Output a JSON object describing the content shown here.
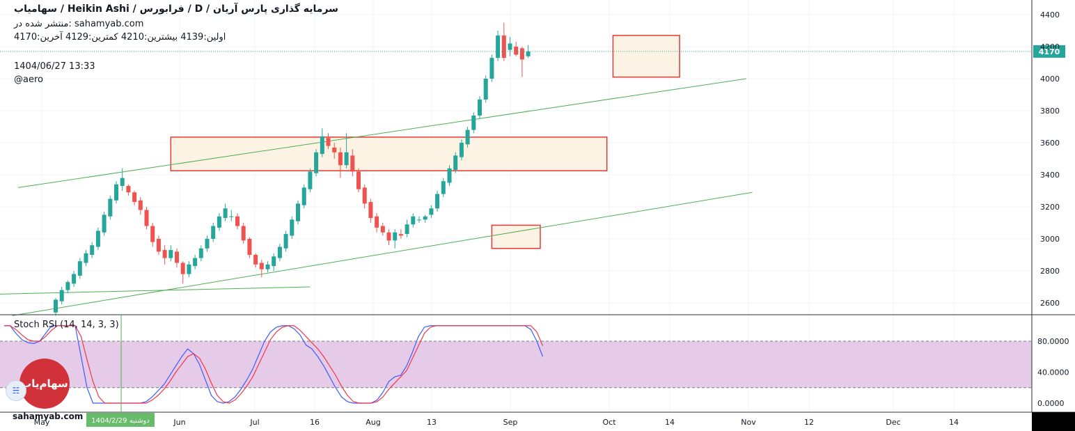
{
  "header": {
    "title": "سرمایه گذاری پارس آریان / D / فرابورس / Heikin Ashi / سهامیاب",
    "published": "منتشر شده در: sahamyab.com",
    "ohlc": "اولین:4139  بیشترین:4210  کمترین:4129  آخرین:4170",
    "datetime": "1404/06/27 13:33",
    "author": "@aero"
  },
  "indicator_label": "Stoch RSI (14, 14, 3, 3)",
  "branding": {
    "logo_text": "سهام‌یاب",
    "watermark": "sahamyab.com",
    "small_icon": "chart-bubble-icon"
  },
  "colors": {
    "up": "#26a69a",
    "down": "#ef5350",
    "trend": "#4caf50",
    "zone": "#e53935",
    "zone_fill": "#fdf3e4",
    "rsi_band": "#e6cbe8",
    "k_line": "#3d5afe",
    "d_line": "#f23645",
    "last_price_bg": "#26a69a"
  },
  "chart_data": [
    {
      "type": "candlestick",
      "style": "Heikin Ashi",
      "timeframe": "D",
      "y_ticks": [
        2600,
        2800,
        3000,
        3200,
        3400,
        3600,
        3800,
        4000,
        4200,
        4400
      ],
      "ylim": [
        2530,
        4460
      ],
      "last_price": 4170,
      "last_price_label": "4170",
      "x_labels": [
        "May",
        "Jun",
        "Jul",
        "16",
        "Aug",
        "13",
        "Sep",
        "Oct",
        "14",
        "Nov",
        "12",
        "Dec",
        "14"
      ],
      "highlighted_date": "1404/2/29 دوشنبه",
      "candles": [
        [
          2540,
          2620,
          2520,
          2630
        ],
        [
          2610,
          2680,
          2590,
          2700
        ],
        [
          2680,
          2730,
          2660,
          2740
        ],
        [
          2720,
          2780,
          2700,
          2800
        ],
        [
          2770,
          2860,
          2750,
          2880
        ],
        [
          2850,
          2910,
          2830,
          2930
        ],
        [
          2900,
          2960,
          2880,
          2980
        ],
        [
          2950,
          3050,
          2930,
          3070
        ],
        [
          3040,
          3150,
          3020,
          3170
        ],
        [
          3140,
          3250,
          3120,
          3270
        ],
        [
          3240,
          3340,
          3220,
          3360
        ],
        [
          3330,
          3380,
          3300,
          3440
        ],
        [
          3330,
          3290,
          3270,
          3340
        ],
        [
          3290,
          3230,
          3210,
          3300
        ],
        [
          3240,
          3180,
          3150,
          3260
        ],
        [
          3180,
          3080,
          3060,
          3200
        ],
        [
          3080,
          2980,
          2950,
          3100
        ],
        [
          3000,
          2920,
          2900,
          3020
        ],
        [
          2930,
          2880,
          2840,
          2960
        ],
        [
          2880,
          2930,
          2860,
          2960
        ],
        [
          2920,
          2850,
          2820,
          2940
        ],
        [
          2850,
          2780,
          2720,
          2860
        ],
        [
          2780,
          2840,
          2760,
          2860
        ],
        [
          2830,
          2880,
          2810,
          2900
        ],
        [
          2880,
          2940,
          2860,
          2960
        ],
        [
          2940,
          3000,
          2920,
          3020
        ],
        [
          3000,
          3080,
          2980,
          3100
        ],
        [
          3070,
          3140,
          3050,
          3160
        ],
        [
          3130,
          3190,
          3110,
          3220
        ],
        [
          3140,
          3140,
          3110,
          3180
        ],
        [
          3140,
          3080,
          3060,
          3160
        ],
        [
          3080,
          2990,
          2970,
          3100
        ],
        [
          3000,
          2900,
          2880,
          3010
        ],
        [
          2900,
          2840,
          2820,
          2910
        ],
        [
          2850,
          2810,
          2760,
          2870
        ],
        [
          2810,
          2840,
          2790,
          2860
        ],
        [
          2830,
          2890,
          2800,
          2910
        ],
        [
          2880,
          2950,
          2860,
          2970
        ],
        [
          2940,
          3030,
          2920,
          3050
        ],
        [
          3020,
          3120,
          3000,
          3140
        ],
        [
          3110,
          3220,
          3090,
          3240
        ],
        [
          3210,
          3320,
          3190,
          3340
        ],
        [
          3310,
          3420,
          3290,
          3440
        ],
        [
          3410,
          3540,
          3390,
          3560
        ],
        [
          3530,
          3640,
          3510,
          3690
        ],
        [
          3630,
          3580,
          3560,
          3660
        ],
        [
          3570,
          3540,
          3500,
          3600
        ],
        [
          3540,
          3460,
          3380,
          3570
        ],
        [
          3460,
          3540,
          3440,
          3660
        ],
        [
          3520,
          3420,
          3390,
          3560
        ],
        [
          3420,
          3310,
          3290,
          3440
        ],
        [
          3320,
          3220,
          3190,
          3340
        ],
        [
          3230,
          3130,
          3100,
          3250
        ],
        [
          3140,
          3070,
          3040,
          3160
        ],
        [
          3080,
          3040,
          3020,
          3100
        ],
        [
          3040,
          2990,
          2960,
          3060
        ],
        [
          2990,
          3040,
          2940,
          3060
        ],
        [
          3030,
          3020,
          3000,
          3060
        ],
        [
          3030,
          3090,
          3010,
          3120
        ],
        [
          3090,
          3140,
          3070,
          3160
        ],
        [
          3120,
          3120,
          3100,
          3140
        ],
        [
          3120,
          3140,
          3100,
          3150
        ],
        [
          3150,
          3190,
          3130,
          3210
        ],
        [
          3190,
          3280,
          3170,
          3300
        ],
        [
          3280,
          3360,
          3260,
          3380
        ],
        [
          3350,
          3440,
          3330,
          3460
        ],
        [
          3430,
          3520,
          3410,
          3540
        ],
        [
          3510,
          3600,
          3490,
          3620
        ],
        [
          3590,
          3680,
          3570,
          3700
        ],
        [
          3680,
          3770,
          3660,
          3790
        ],
        [
          3770,
          3870,
          3750,
          3890
        ],
        [
          3870,
          4000,
          3850,
          4020
        ],
        [
          4000,
          4130,
          3980,
          4150
        ],
        [
          4130,
          4270,
          4110,
          4300
        ],
        [
          4270,
          4130,
          4110,
          4350
        ],
        [
          4180,
          4220,
          4140,
          4260
        ],
        [
          4200,
          4150,
          4140,
          4230
        ],
        [
          4190,
          4120,
          4010,
          4200
        ],
        [
          4140,
          4170,
          4129,
          4210
        ]
      ],
      "trendlines": [
        {
          "x0": 0,
          "y0": 2655,
          "x1": 42,
          "y1": 2700
        },
        {
          "x0": 3,
          "y0": 3320,
          "x1": 114,
          "y1": 4000
        },
        {
          "x0": 2,
          "y0": 2520,
          "x1": 115,
          "y1": 3290
        }
      ],
      "zones": [
        {
          "x0": 19,
          "y0": 3425,
          "x1": 91,
          "y1": 3635
        },
        {
          "x0": 72,
          "y0": 2940,
          "x1": 80,
          "y1": 3085
        },
        {
          "x0": 92,
          "y0": 4010,
          "x1": 103,
          "y1": 4270
        }
      ]
    },
    {
      "type": "line",
      "title": "Stoch RSI (14, 14, 3, 3)",
      "y_ticks": [
        0,
        40,
        80
      ],
      "y_tick_labels": [
        "0.0000",
        "40.0000",
        "80.0000"
      ],
      "ylim": [
        -8,
        110
      ],
      "band": [
        20,
        80
      ],
      "series": [
        {
          "values": [
            100,
            100,
            90,
            82,
            78,
            77,
            80,
            90,
            100,
            100,
            100,
            100,
            100,
            60,
            20,
            0,
            0,
            0,
            0,
            0,
            0,
            0,
            0,
            0,
            2,
            8,
            16,
            24,
            36,
            48,
            60,
            70,
            64,
            50,
            30,
            10,
            2,
            0,
            2,
            8,
            18,
            30,
            44,
            62,
            80,
            92,
            98,
            100,
            100,
            96,
            88,
            75,
            70,
            60,
            48,
            34,
            20,
            8,
            2,
            0,
            0,
            0,
            0,
            4,
            14,
            28,
            34,
            36,
            48,
            66,
            86,
            98,
            100,
            100,
            100,
            100,
            100,
            100,
            100,
            100,
            100,
            100,
            100,
            100,
            100,
            100,
            100,
            100,
            100,
            95,
            80,
            60
          ]
        },
        {
          "values": [
            100,
            100,
            95,
            88,
            82,
            80,
            80,
            86,
            94,
            100,
            100,
            100,
            100,
            86,
            56,
            28,
            8,
            0,
            0,
            0,
            0,
            0,
            0,
            0,
            0,
            4,
            10,
            18,
            28,
            40,
            50,
            60,
            64,
            58,
            44,
            26,
            10,
            2,
            0,
            4,
            12,
            22,
            34,
            50,
            66,
            82,
            92,
            98,
            100,
            100,
            94,
            86,
            78,
            70,
            60,
            48,
            36,
            22,
            10,
            2,
            0,
            0,
            0,
            2,
            8,
            18,
            26,
            34,
            42,
            58,
            74,
            90,
            98,
            100,
            100,
            100,
            100,
            100,
            100,
            100,
            100,
            100,
            100,
            100,
            100,
            100,
            100,
            100,
            100,
            100,
            92,
            74
          ]
        }
      ]
    }
  ]
}
